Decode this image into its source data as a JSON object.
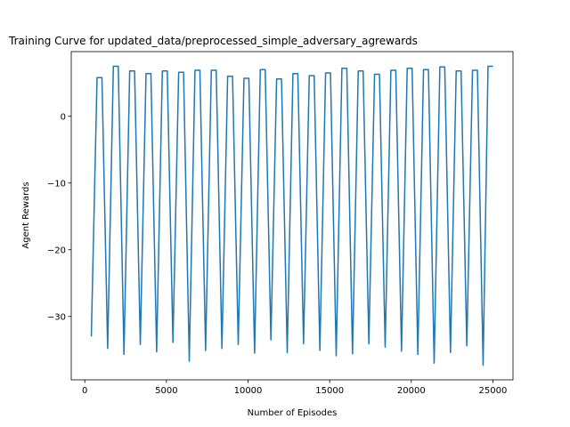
{
  "chart_data": {
    "type": "line",
    "title": "Training Curve for updated_data/preprocessed_simple_adversary_agrewards",
    "x_label": "Number of Episodes",
    "y_label": "Agent Rewards",
    "x": [
      400,
      750,
      1050,
      1400,
      1750,
      2050,
      2400,
      2750,
      3050,
      3400,
      3750,
      4050,
      4400,
      4750,
      5050,
      5400,
      5750,
      6050,
      6400,
      6750,
      7050,
      7400,
      7750,
      8050,
      8400,
      8750,
      9050,
      9400,
      9750,
      10050,
      10400,
      10750,
      11050,
      11400,
      11750,
      12050,
      12400,
      12750,
      13050,
      13400,
      13750,
      14050,
      14400,
      14750,
      15050,
      15400,
      15750,
      16050,
      16400,
      16750,
      17050,
      17400,
      17750,
      18050,
      18400,
      18750,
      19050,
      19400,
      19750,
      20050,
      20400,
      20750,
      21050,
      21400,
      21750,
      22050,
      22400,
      22750,
      23050,
      23400,
      23750,
      24050,
      24400,
      24700,
      25000
    ],
    "series": [
      {
        "color": "#1f77b4",
        "values": [
          -33,
          5.8,
          5.8,
          -34.8,
          7.5,
          7.5,
          -35.7,
          6.8,
          6.8,
          -34.2,
          6.4,
          6.4,
          -35.3,
          6.8,
          6.8,
          -33.9,
          6.6,
          6.6,
          -36.7,
          6.9,
          6.9,
          -35.1,
          6.9,
          6.9,
          -34.8,
          6.0,
          6.0,
          -34.2,
          5.7,
          5.7,
          -35.5,
          7.0,
          7.0,
          -33.5,
          5.6,
          5.6,
          -35.4,
          6.4,
          6.4,
          -34.1,
          6.1,
          6.1,
          -35.1,
          6.5,
          6.5,
          -35.9,
          7.2,
          7.2,
          -35.6,
          6.8,
          6.8,
          -34.1,
          6.3,
          6.3,
          -34.6,
          6.9,
          6.9,
          -35.2,
          7.2,
          7.2,
          -35.7,
          7.0,
          7.0,
          -37.0,
          7.4,
          7.4,
          -35.4,
          6.8,
          6.8,
          -34.4,
          6.9,
          6.9,
          -37.3,
          7.5,
          7.5
        ]
      }
    ],
    "xlim": [
      -830,
      26230
    ],
    "ylim": [
      -39.5,
      9.7
    ],
    "xticks": [
      0,
      5000,
      10000,
      15000,
      20000,
      25000
    ],
    "yticks": [
      {
        "value": -30,
        "label": "−30"
      },
      {
        "value": -20,
        "label": "−20"
      },
      {
        "value": -10,
        "label": "−10"
      },
      0
    ]
  }
}
